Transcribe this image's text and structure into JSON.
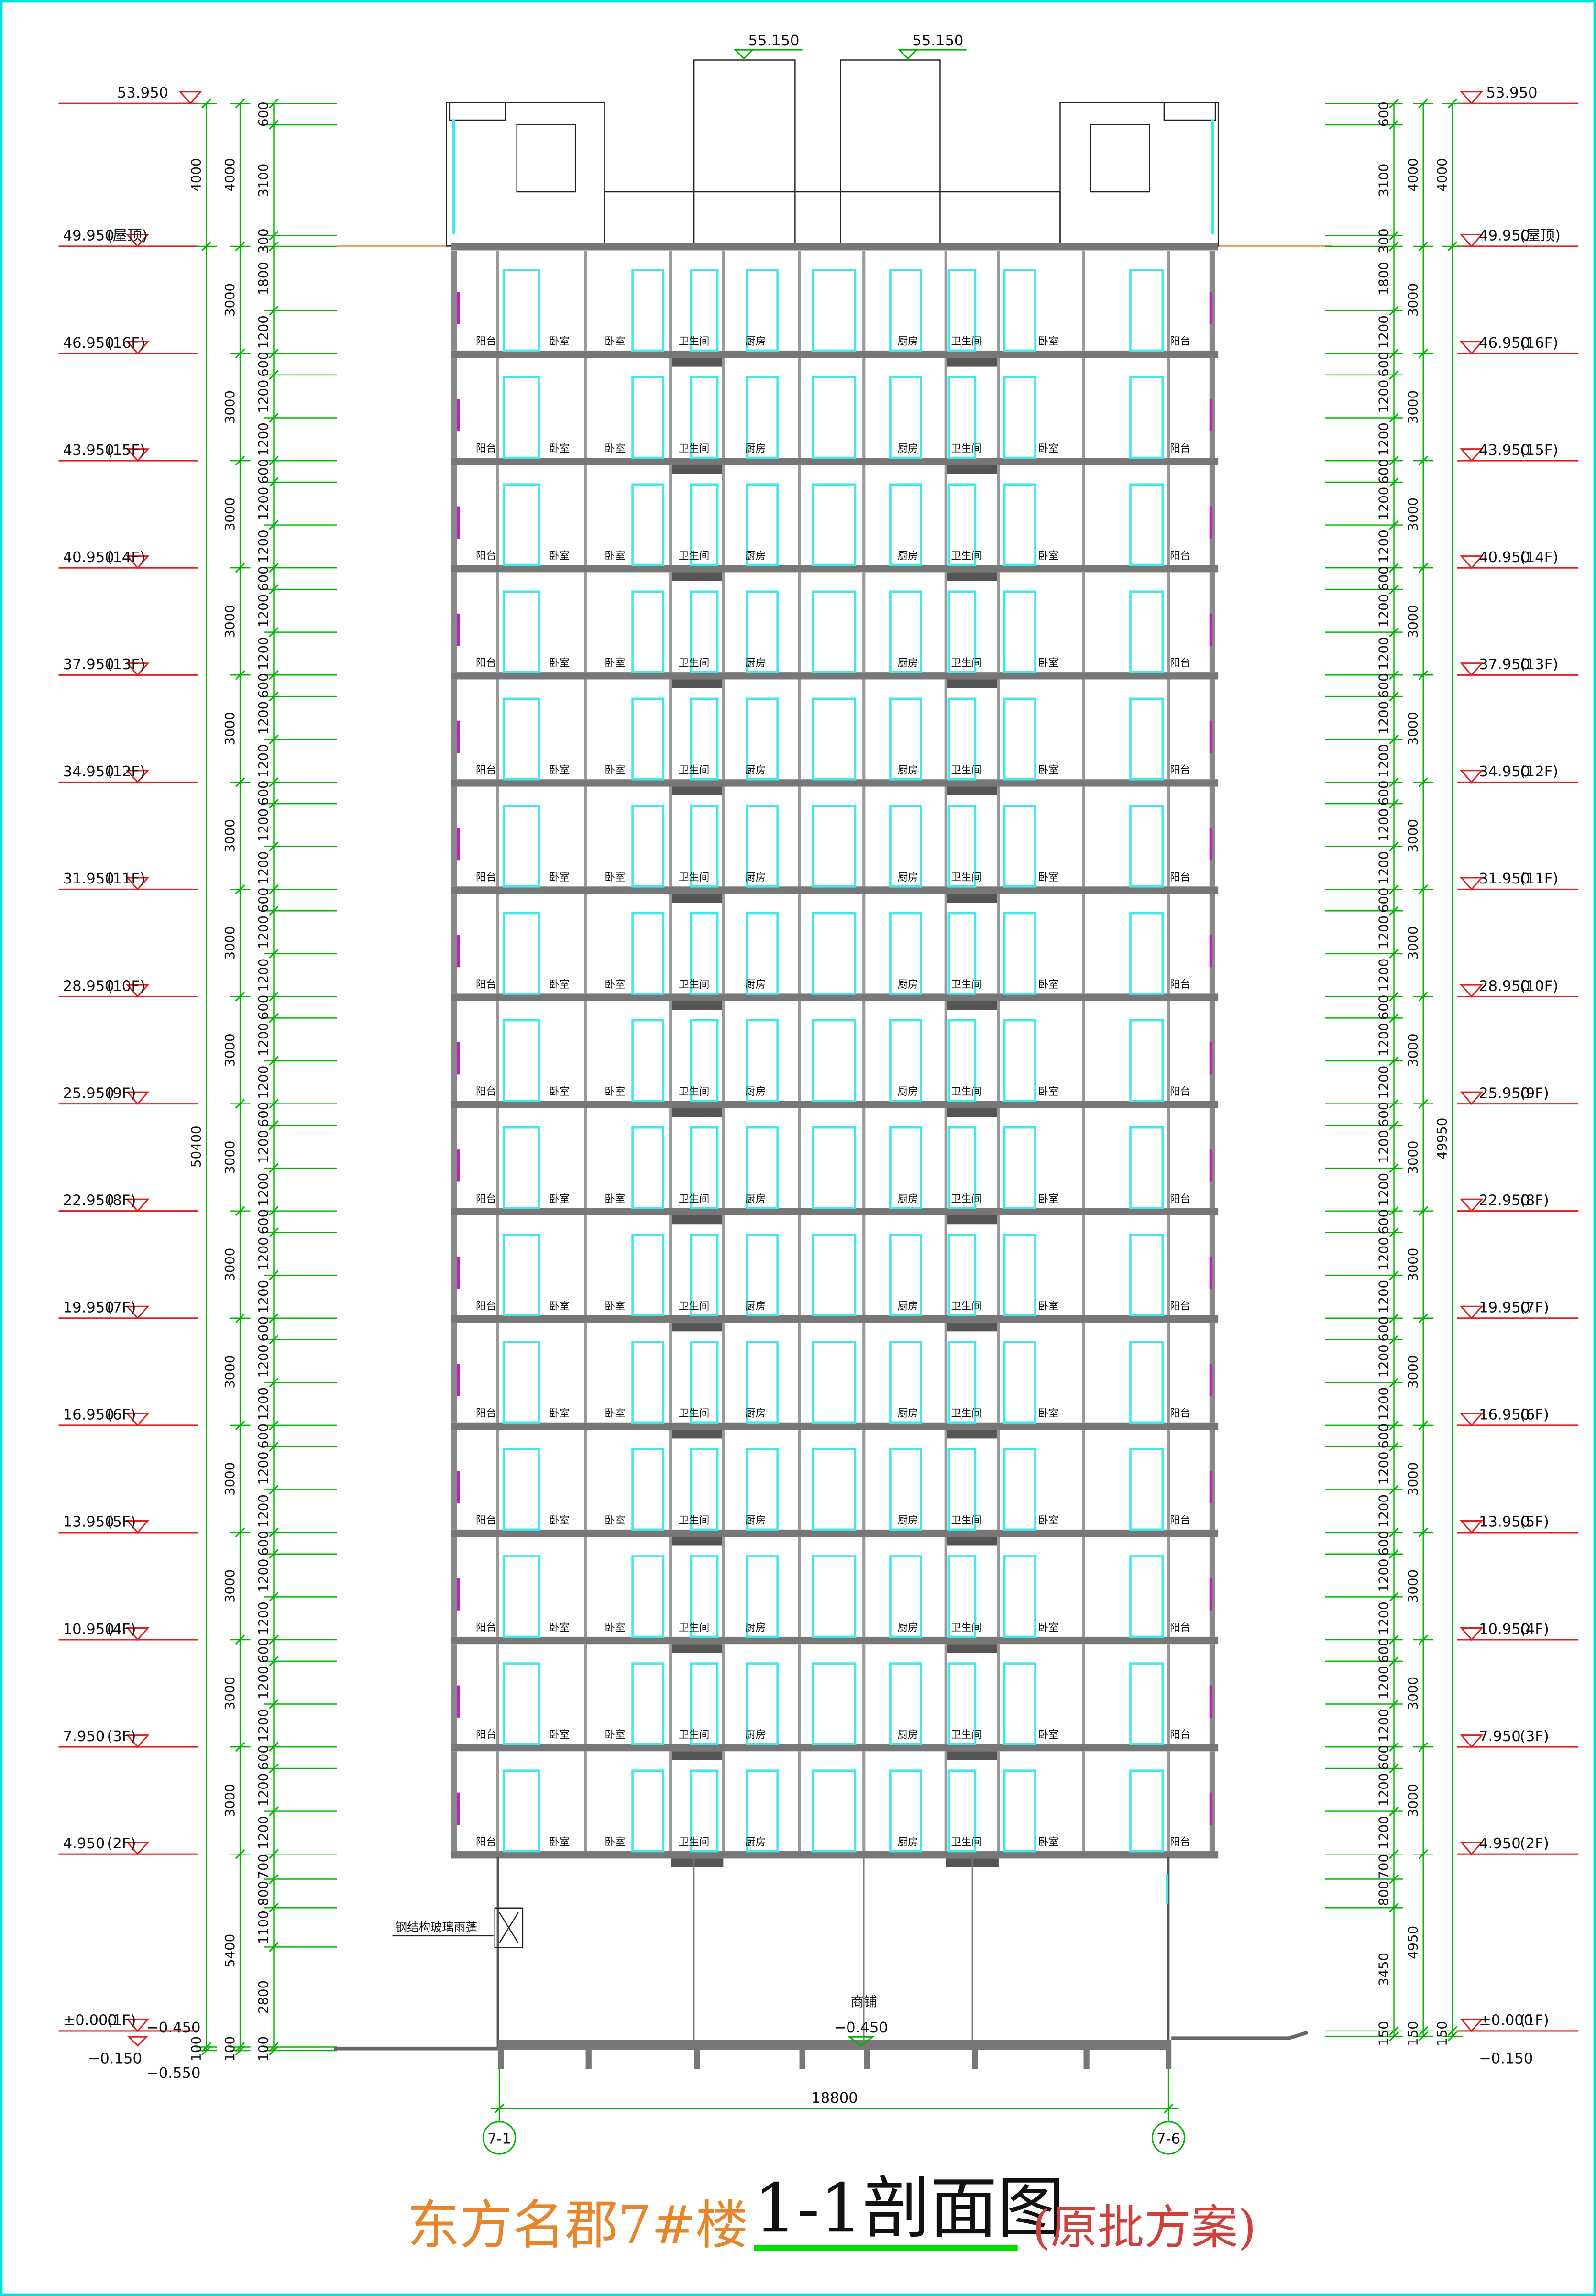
{
  "roof_marks": [
    "55.150",
    "55.150"
  ],
  "left_levels": [
    {
      "elev": "53.950"
    },
    {
      "elev": "49.950",
      "floor": "(屋顶)"
    },
    {
      "elev": "46.950",
      "floor": "(16F)"
    },
    {
      "elev": "43.950",
      "floor": "(15F)"
    },
    {
      "elev": "40.950",
      "floor": "(14F)"
    },
    {
      "elev": "37.950",
      "floor": "(13F)"
    },
    {
      "elev": "34.950",
      "floor": "(12F)"
    },
    {
      "elev": "31.950",
      "floor": "(11F)"
    },
    {
      "elev": "28.950",
      "floor": "(10F)"
    },
    {
      "elev": "25.950",
      "floor": "(9F)"
    },
    {
      "elev": "22.950",
      "floor": "(8F)"
    },
    {
      "elev": "19.950",
      "floor": "(7F)"
    },
    {
      "elev": "16.950",
      "floor": "(6F)"
    },
    {
      "elev": "13.950",
      "floor": "(5F)"
    },
    {
      "elev": "10.950",
      "floor": "(4F)"
    },
    {
      "elev": "7.950",
      "floor": "(3F)"
    },
    {
      "elev": "4.950",
      "floor": "(2F)"
    },
    {
      "elev": "±0.000",
      "floor": "(1F)"
    }
  ],
  "left_low_levels": [
    "−0.450",
    "−0.150",
    "−0.550"
  ],
  "right_levels": [
    {
      "elev": "53.950"
    },
    {
      "elev": "49.950",
      "floor": "(屋顶)"
    },
    {
      "elev": "46.950",
      "floor": "(16F)"
    },
    {
      "elev": "43.950",
      "floor": "(15F)"
    },
    {
      "elev": "40.950",
      "floor": "(14F)"
    },
    {
      "elev": "37.950",
      "floor": "(13F)"
    },
    {
      "elev": "34.950",
      "floor": "(12F)"
    },
    {
      "elev": "31.950",
      "floor": "(11F)"
    },
    {
      "elev": "28.950",
      "floor": "(10F)"
    },
    {
      "elev": "25.950",
      "floor": "(9F)"
    },
    {
      "elev": "22.950",
      "floor": "(8F)"
    },
    {
      "elev": "19.950",
      "floor": "(7F)"
    },
    {
      "elev": "16.950",
      "floor": "(6F)"
    },
    {
      "elev": "13.950",
      "floor": "(5F)"
    },
    {
      "elev": "10.950",
      "floor": "(4F)"
    },
    {
      "elev": "7.950",
      "floor": "(3F)"
    },
    {
      "elev": "4.950",
      "floor": "(2F)"
    },
    {
      "elev": "±0.000",
      "floor": "(1F)"
    }
  ],
  "right_low_levels": [
    "−0.150"
  ],
  "left_dims": [
    [
      "4000",
      "50400",
      "100"
    ],
    [
      "4000",
      "3000",
      "3000",
      "3000",
      "3000",
      "3000",
      "3000",
      "3000",
      "3000",
      "3000",
      "3000",
      "3000",
      "3000",
      "3000",
      "3000",
      "3000",
      "5400",
      "100"
    ],
    [
      "600",
      "3100",
      "300",
      "1800",
      "1200",
      "600",
      "1200",
      "1200",
      "600",
      "1200",
      "1200",
      "600",
      "1200",
      "1200",
      "600",
      "1200",
      "1200",
      "600",
      "1200",
      "1200",
      "600",
      "1200",
      "1200",
      "600",
      "1200",
      "1200",
      "600",
      "1200",
      "1200",
      "600",
      "1200",
      "1200",
      "600",
      "1200",
      "1200",
      "600",
      "1200",
      "1200",
      "600",
      "1200",
      "1200",
      "600",
      "1200",
      "1200",
      "600",
      "1200",
      "1200",
      "700",
      "800",
      "1100",
      "2800",
      "100"
    ]
  ],
  "right_dims": [
    [
      "600",
      "3100",
      "300",
      "1800",
      "1200",
      "600",
      "1200",
      "1200",
      "600",
      "1200",
      "1200",
      "600",
      "1200",
      "1200",
      "600",
      "1200",
      "1200",
      "600",
      "1200",
      "1200",
      "600",
      "1200",
      "1200",
      "600",
      "1200",
      "1200",
      "600",
      "1200",
      "1200",
      "600",
      "1200",
      "1200",
      "600",
      "1200",
      "1200",
      "600",
      "1200",
      "1200",
      "600",
      "1200",
      "1200",
      "600",
      "1200",
      "1200",
      "600",
      "1200",
      "1200",
      "700",
      "800",
      "3450",
      "150"
    ],
    [
      "4000",
      "3000",
      "3000",
      "3000",
      "3000",
      "3000",
      "3000",
      "3000",
      "3000",
      "3000",
      "3000",
      "3000",
      "3000",
      "3000",
      "3000",
      "3000",
      "4950",
      "150"
    ],
    [
      "4000",
      "49950",
      "150"
    ]
  ],
  "rooms": [
    "阳台",
    "卧室",
    "卧室",
    "卫生间",
    "厨房",
    "厨房",
    "卫生间",
    "卧室",
    "阳台"
  ],
  "shop": "商铺",
  "shop_level": "−0.450",
  "canopy": "钢结构玻璃雨蓬",
  "span": "18800",
  "axes": [
    "7-1",
    "7-6"
  ],
  "title": {
    "main": "东方名郡7#楼",
    "section": "1-1剖面图",
    "note": "(原批方案)"
  }
}
